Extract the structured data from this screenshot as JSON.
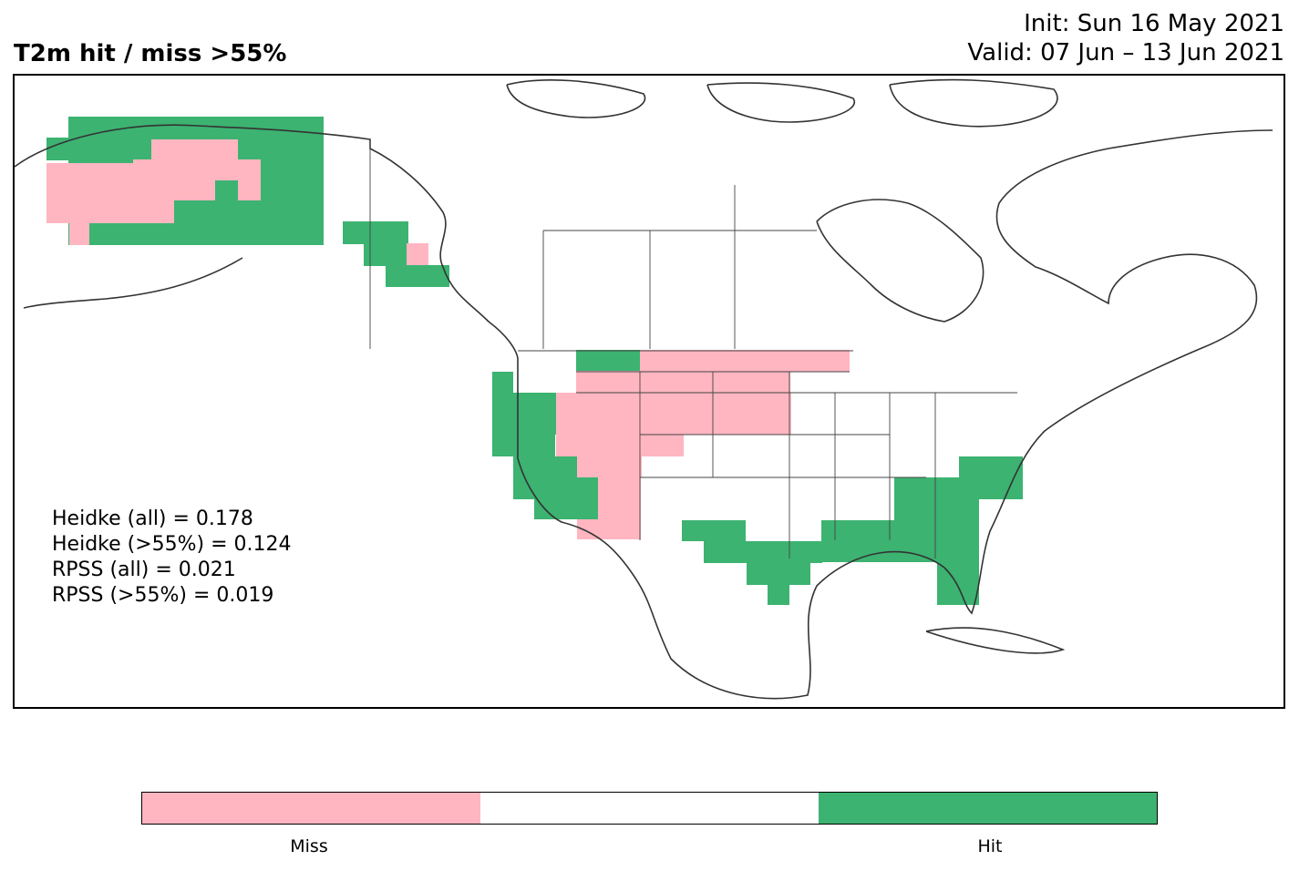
{
  "title": "T2m hit / miss  >55%",
  "init_line": "Init: Sun 16 May 2021",
  "valid_line": "Valid: 07 Jun – 13 Jun 2021",
  "scores": {
    "heidke_all": "Heidke (all) = 0.178",
    "heidke_55": "Heidke (>55%) = 0.124",
    "rpss_all": "RPSS (all) = 0.021",
    "rpss_55": "RPSS (>55%) = 0.019"
  },
  "colorbar": {
    "miss_label": "Miss",
    "hit_label": "Hit",
    "colors": {
      "miss": "#ffb6c1",
      "neutral": "#ffffff",
      "hit": "#3cb371"
    }
  }
}
